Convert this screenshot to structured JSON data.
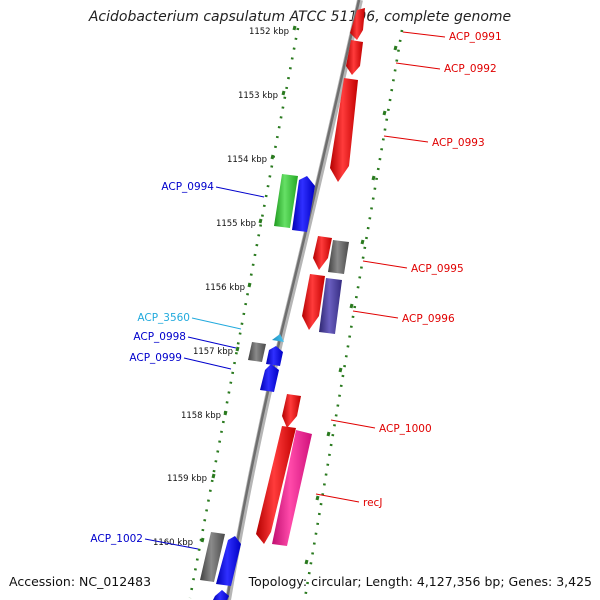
{
  "title": "Acidobacterium capsulatum ATCC 51196, complete genome",
  "footer": {
    "accession": "Accession: NC_012483",
    "topology": "Topology: circular; Length: 4,127,356 bp; Genes: 3,425"
  },
  "colors": {
    "backbone": "#8c8c8c",
    "ticks": "#2a7a1f",
    "red": "#ff0000",
    "gray": "#6e6e6e",
    "blue": "#0000ff",
    "green": "#33cc33",
    "purple": "#4b3fa0",
    "pink": "#ff1493",
    "light_blue": "#33b5e5",
    "label_red": "#e00000",
    "label_blue": "#0000cc",
    "label_light_blue": "#22aadd"
  },
  "ticks": [
    {
      "label": "1152 kbp"
    },
    {
      "label": "1153 kbp"
    },
    {
      "label": "1154 kbp"
    },
    {
      "label": "1155 kbp"
    },
    {
      "label": "1156 kbp"
    },
    {
      "label": "1157 kbp"
    },
    {
      "label": "1158 kbp"
    },
    {
      "label": "1159 kbp"
    },
    {
      "label": "1160 kbp"
    }
  ],
  "labels": {
    "acp_0991": "ACP_0991",
    "acp_0992": "ACP_0992",
    "acp_0993": "ACP_0993",
    "acp_0994": "ACP_0994",
    "acp_0995": "ACP_0995",
    "acp_0996": "ACP_0996",
    "acp_3560": "ACP_3560",
    "acp_0998": "ACP_0998",
    "acp_0999": "ACP_0999",
    "acp_1000": "ACP_1000",
    "recj": "recJ",
    "acp_1002": "ACP_1002"
  }
}
